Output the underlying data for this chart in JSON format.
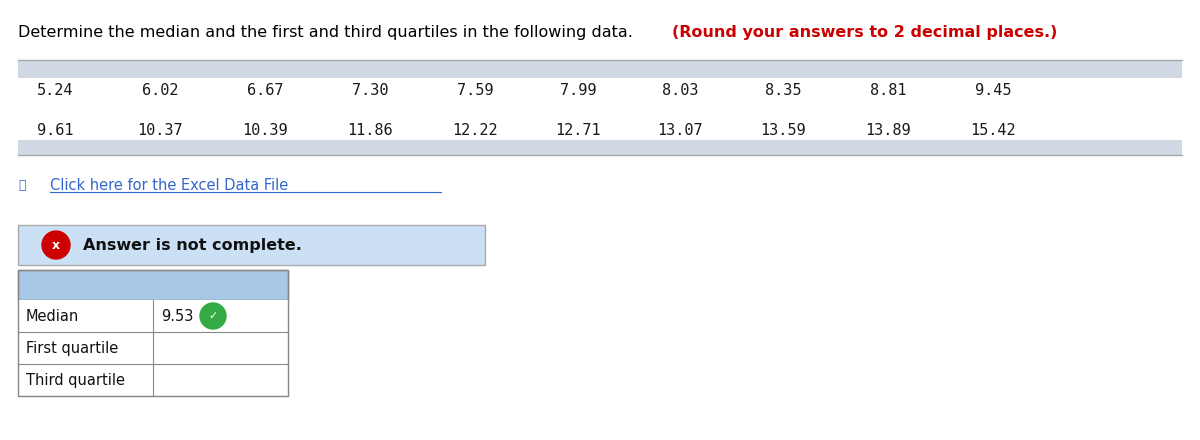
{
  "title_normal": "Determine the median and the first and third quartiles in the following data. ",
  "title_bold": "(Round your answers to 2 decimal places.)",
  "data_row1": [
    "5.24",
    "6.02",
    "6.67",
    "7.30",
    "7.59",
    "7.99",
    "8.03",
    "8.35",
    "8.81",
    "9.45"
  ],
  "data_row2": [
    "9.61",
    "10.37",
    "10.39",
    "11.86",
    "12.22",
    "12.71",
    "13.07",
    "13.59",
    "13.89",
    "15.42"
  ],
  "excel_link": "Click here for the Excel Data File",
  "answer_incomplete_text": "Answer is not complete.",
  "table_rows": [
    "Median",
    "First quartile",
    "Third quartile"
  ],
  "median_value": "9.53",
  "bg_color": "#ffffff",
  "data_table_header_color": "#d0d8e4",
  "data_table_footer_color": "#d0d8e4",
  "answer_box_color": "#cce0f5",
  "answer_table_header_color": "#a8c8e8",
  "title_color": "#000000",
  "bold_color": "#cc0000",
  "link_color": "#3366cc",
  "mono_font": "monospace",
  "normal_font": "DejaVu Sans",
  "col_positions": [
    0.55,
    1.6,
    2.65,
    3.7,
    4.75,
    5.78,
    6.8,
    7.83,
    8.88,
    9.93
  ]
}
